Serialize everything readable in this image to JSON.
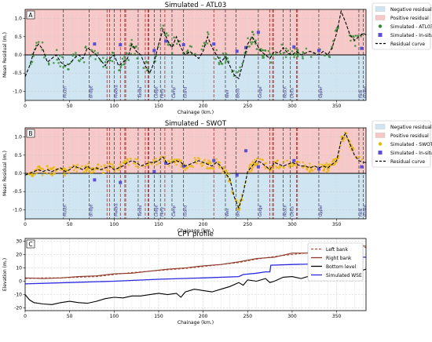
{
  "chart_data": [
    {
      "type": "scatter",
      "panel_label": "A",
      "title": "Simulated – ATL03",
      "xlabel": "Chainage (km.)",
      "ylabel": "Mean Residual (m.)",
      "xlim": [
        0,
        383
      ],
      "ylim": [
        -1.25,
        1.25
      ],
      "xticks": [
        0,
        50,
        100,
        150,
        200,
        250,
        300,
        350
      ],
      "yticks": [
        -1.0,
        -0.5,
        0.0,
        0.5,
        1.0
      ],
      "grid": true,
      "legend_position": "outside-right",
      "background_bands": {
        "positive_color": "#f7c8c8",
        "negative_color": "#cfe6f2"
      },
      "legend": [
        {
          "label": "Negative residual",
          "kind": "patch",
          "color": "#cfe6f2"
        },
        {
          "label": "Positive residual",
          "kind": "patch",
          "color": "#f7c8c8"
        },
        {
          "label": "Simulated - ATL03",
          "kind": "marker",
          "color": "#2e8b2e"
        },
        {
          "label": "Simulated - In-situ",
          "kind": "square",
          "color": "#5a4fd6"
        },
        {
          "label": "Residual curve",
          "kind": "dashline",
          "color": "#000000"
        }
      ],
      "station_lines_red": [
        92,
        95,
        107,
        112,
        113,
        135,
        138,
        139,
        157,
        212,
        275,
        278,
        279,
        305,
        306
      ],
      "station_lines_black": [
        43,
        72,
        100,
        127,
        145,
        152,
        165,
        178,
        225,
        237,
        262,
        290,
        298,
        330,
        375,
        380
      ],
      "series": [
        {
          "name": "Residual curve",
          "style": "dashed",
          "color": "#000000",
          "x": [
            0,
            5,
            10,
            15,
            20,
            25,
            30,
            35,
            40,
            45,
            50,
            55,
            60,
            65,
            70,
            75,
            80,
            85,
            90,
            95,
            100,
            105,
            110,
            115,
            120,
            125,
            130,
            135,
            140,
            145,
            150,
            155,
            160,
            165,
            170,
            175,
            180,
            185,
            190,
            195,
            200,
            205,
            210,
            215,
            220,
            225,
            230,
            235,
            240,
            245,
            250,
            255,
            260,
            265,
            270,
            275,
            280,
            285,
            290,
            295,
            300,
            305,
            310,
            315,
            320,
            325,
            330,
            335,
            340,
            345,
            350,
            355,
            360,
            365,
            370,
            375,
            380,
            383
          ],
          "y": [
            -0.6,
            -0.3,
            0.1,
            0.3,
            0.15,
            -0.2,
            -0.1,
            0.0,
            -0.2,
            -0.3,
            -0.25,
            -0.1,
            0.0,
            -0.1,
            0.2,
            0.1,
            0.0,
            -0.15,
            -0.3,
            -0.1,
            0.0,
            -0.3,
            -0.2,
            -0.1,
            0.3,
            0.1,
            0.0,
            -0.3,
            -0.5,
            -0.2,
            0.3,
            0.7,
            0.4,
            0.2,
            0.5,
            0.2,
            0.0,
            0.1,
            0.0,
            -0.1,
            0.1,
            0.5,
            0.2,
            0.0,
            -0.2,
            -0.05,
            -0.3,
            -0.55,
            -0.65,
            -0.2,
            0.3,
            0.5,
            0.3,
            0.1,
            0.0,
            -0.1,
            0.1,
            0.05,
            0.2,
            0.05,
            0.0,
            0.1,
            0.0,
            0.05,
            0.1,
            0.05,
            0.0,
            0.1,
            0.0,
            0.2,
            0.6,
            1.2,
            0.9,
            0.55,
            0.4,
            0.5,
            0.6,
            0.55
          ]
        },
        {
          "name": "Simulated - ATL03",
          "marker": "dot",
          "color": "#2e8b2e",
          "scatter_from": "Residual curve",
          "spread": 0.18,
          "count": 230
        },
        {
          "name": "Simulated - In-situ",
          "marker": "square",
          "color": "#5a4fd6",
          "x": [
            78,
            107,
            145,
            158,
            178,
            212,
            238,
            248,
            262,
            302,
            330,
            378
          ],
          "y": [
            0.3,
            0.28,
            0.12,
            0.38,
            0.28,
            0.3,
            0.1,
            0.2,
            0.62,
            0.22,
            0.12,
            0.18
          ]
        }
      ],
      "station_labels": [
        "Mouth",
        "Bridge",
        "Mweka",
        "Tundu",
        "Lodge",
        "Ferry",
        "Camp",
        "Island",
        "Weir",
        "Bend",
        "Gorge",
        "Reach",
        "Delta",
        "Upper",
        "Falls",
        "Intake",
        "Pump",
        "Village"
      ]
    },
    {
      "type": "scatter",
      "panel_label": "B",
      "title": "Simulated – SWOT",
      "xlabel": "Chainage (km.)",
      "ylabel": "Mean Residual (m.)",
      "xlim": [
        0,
        383
      ],
      "ylim": [
        -1.25,
        1.25
      ],
      "xticks": [
        0,
        50,
        100,
        150,
        200,
        250,
        300,
        350
      ],
      "yticks": [
        -1.0,
        -0.5,
        0.0,
        0.5,
        1.0
      ],
      "grid": true,
      "legend_position": "outside-right",
      "background_bands": {
        "positive_color": "#f7c8c8",
        "negative_color": "#cfe6f2"
      },
      "legend": [
        {
          "label": "Negative residual",
          "kind": "patch",
          "color": "#cfe6f2"
        },
        {
          "label": "Positive residual",
          "kind": "patch",
          "color": "#f7c8c8"
        },
        {
          "label": "Simulated - SWOT",
          "kind": "marker",
          "color": "#e6b800"
        },
        {
          "label": "Simulated - In-situ",
          "kind": "square",
          "color": "#5a4fd6"
        },
        {
          "label": "Residual curve",
          "kind": "dashline",
          "color": "#000000"
        }
      ],
      "station_lines_red": [
        92,
        95,
        107,
        112,
        113,
        135,
        138,
        139,
        157,
        212,
        275,
        278,
        279,
        305,
        306
      ],
      "station_lines_black": [
        43,
        72,
        100,
        127,
        145,
        152,
        165,
        178,
        225,
        237,
        262,
        290,
        298,
        330,
        375,
        380
      ],
      "series": [
        {
          "name": "Residual curve",
          "style": "dashed",
          "color": "#000000",
          "x": [
            0,
            5,
            10,
            15,
            20,
            25,
            30,
            35,
            40,
            45,
            50,
            55,
            60,
            65,
            70,
            75,
            80,
            85,
            90,
            95,
            100,
            105,
            110,
            115,
            120,
            125,
            130,
            135,
            140,
            145,
            150,
            155,
            160,
            165,
            170,
            175,
            180,
            185,
            190,
            195,
            200,
            205,
            210,
            215,
            220,
            225,
            230,
            235,
            240,
            245,
            250,
            255,
            260,
            265,
            270,
            275,
            280,
            285,
            290,
            295,
            300,
            305,
            310,
            315,
            320,
            325,
            330,
            335,
            340,
            345,
            350,
            355,
            360,
            365,
            370,
            375,
            380,
            383
          ],
          "y": [
            -0.05,
            0.0,
            0.05,
            0.1,
            0.05,
            0.1,
            0.05,
            0.1,
            0.15,
            0.05,
            0.1,
            0.2,
            0.15,
            0.1,
            0.2,
            0.1,
            0.15,
            0.1,
            0.15,
            0.2,
            0.1,
            0.15,
            0.2,
            0.3,
            0.35,
            0.3,
            0.2,
            0.25,
            0.3,
            0.3,
            0.35,
            0.45,
            0.25,
            0.3,
            0.35,
            0.3,
            0.2,
            0.25,
            0.3,
            0.35,
            0.3,
            0.25,
            0.2,
            0.3,
            0.2,
            0.0,
            -0.15,
            -0.65,
            -0.95,
            -0.55,
            0.05,
            0.2,
            0.35,
            0.3,
            0.2,
            0.1,
            0.3,
            0.25,
            0.2,
            0.25,
            0.3,
            0.25,
            0.2,
            0.2,
            0.15,
            0.2,
            0.15,
            0.2,
            0.15,
            0.25,
            0.35,
            0.9,
            1.1,
            0.8,
            0.5,
            0.35,
            0.3,
            0.3
          ]
        },
        {
          "name": "Simulated - SWOT",
          "marker": "dot",
          "color": "#e6b800",
          "scatter_from": "Residual curve",
          "spread": 0.12,
          "count": 420
        },
        {
          "name": "Simulated - In-situ",
          "marker": "square",
          "color": "#5a4fd6",
          "x": [
            78,
            107,
            145,
            158,
            178,
            212,
            238,
            248,
            262,
            302,
            330,
            378
          ],
          "y": [
            -0.18,
            -0.25,
            0.05,
            0.28,
            0.2,
            0.35,
            -0.05,
            0.62,
            0.18,
            0.35,
            0.12,
            0.18
          ]
        }
      ],
      "station_labels": [
        "Mouth",
        "Bridge",
        "Mweka",
        "Tundu",
        "Lodge",
        "Ferry",
        "Camp",
        "Island",
        "Weir",
        "Bend",
        "Gorge",
        "Reach",
        "Delta",
        "Upper",
        "Falls",
        "Intake",
        "Pump",
        "Village"
      ]
    },
    {
      "type": "line",
      "panel_label": "C",
      "title": "CPY profile",
      "xlabel": "Chainage (km.)",
      "ylabel": "Elevation (m.)",
      "xlim": [
        0,
        383
      ],
      "ylim": [
        -22,
        32
      ],
      "xticks": [
        0,
        50,
        100,
        150,
        200,
        250,
        300,
        350
      ],
      "yticks": [
        -20,
        -10,
        0,
        10,
        20,
        30
      ],
      "grid": true,
      "legend_position": "top-right",
      "series": [
        {
          "name": "Left bank",
          "style": "dashed",
          "color": "#b0503c",
          "x": [
            0,
            20,
            40,
            60,
            80,
            100,
            120,
            140,
            160,
            180,
            200,
            220,
            240,
            260,
            280,
            300,
            320,
            340,
            360,
            375,
            383
          ],
          "y": [
            2,
            2.5,
            2.5,
            3,
            3.5,
            5,
            6.5,
            7.5,
            8.5,
            9.5,
            11,
            12.5,
            14,
            16.5,
            18.5,
            20,
            21.5,
            22.5,
            24.5,
            26.5,
            25
          ]
        },
        {
          "name": "Right bank",
          "style": "solid",
          "color": "#8b3a2a",
          "x": [
            0,
            20,
            40,
            60,
            80,
            100,
            120,
            140,
            160,
            180,
            200,
            220,
            240,
            260,
            280,
            300,
            320,
            340,
            360,
            375,
            383
          ],
          "y": [
            2.5,
            2,
            2.5,
            3.5,
            4,
            5.5,
            6,
            7.5,
            9,
            10,
            11.5,
            12.5,
            14.5,
            17,
            18,
            21,
            21,
            23.5,
            24,
            27,
            26
          ]
        },
        {
          "name": "Bottom level",
          "style": "solid",
          "color": "#000000",
          "x": [
            0,
            5,
            10,
            20,
            30,
            40,
            50,
            60,
            70,
            80,
            90,
            100,
            110,
            120,
            130,
            140,
            150,
            160,
            170,
            175,
            180,
            190,
            200,
            210,
            220,
            230,
            240,
            245,
            250,
            260,
            270,
            275,
            280,
            290,
            300,
            310,
            320,
            330,
            340,
            350,
            360,
            370,
            375,
            378,
            383
          ],
          "y": [
            -10,
            -14,
            -16,
            -17,
            -17.5,
            -16,
            -15,
            -16,
            -16.5,
            -15,
            -13,
            -12,
            -12.5,
            -11,
            -11,
            -10,
            -9,
            -10,
            -9,
            -12,
            -8,
            -6,
            -7,
            -8,
            -6,
            -4,
            -1,
            -3,
            1,
            0,
            2,
            -1,
            0,
            3,
            3.5,
            2,
            4,
            5,
            8,
            11,
            13,
            13.5,
            12,
            8,
            9
          ]
        },
        {
          "name": "Simulated WSE",
          "style": "solid",
          "color": "#2a2ae0",
          "x": [
            0,
            50,
            100,
            150,
            200,
            240,
            245,
            260,
            270,
            275,
            276,
            300,
            330,
            340,
            360,
            375,
            383
          ],
          "y": [
            -2,
            -1,
            0,
            1.5,
            2.5,
            3.5,
            5,
            6,
            7,
            7,
            12,
            12.5,
            13,
            15,
            17,
            18,
            18
          ]
        }
      ]
    }
  ]
}
